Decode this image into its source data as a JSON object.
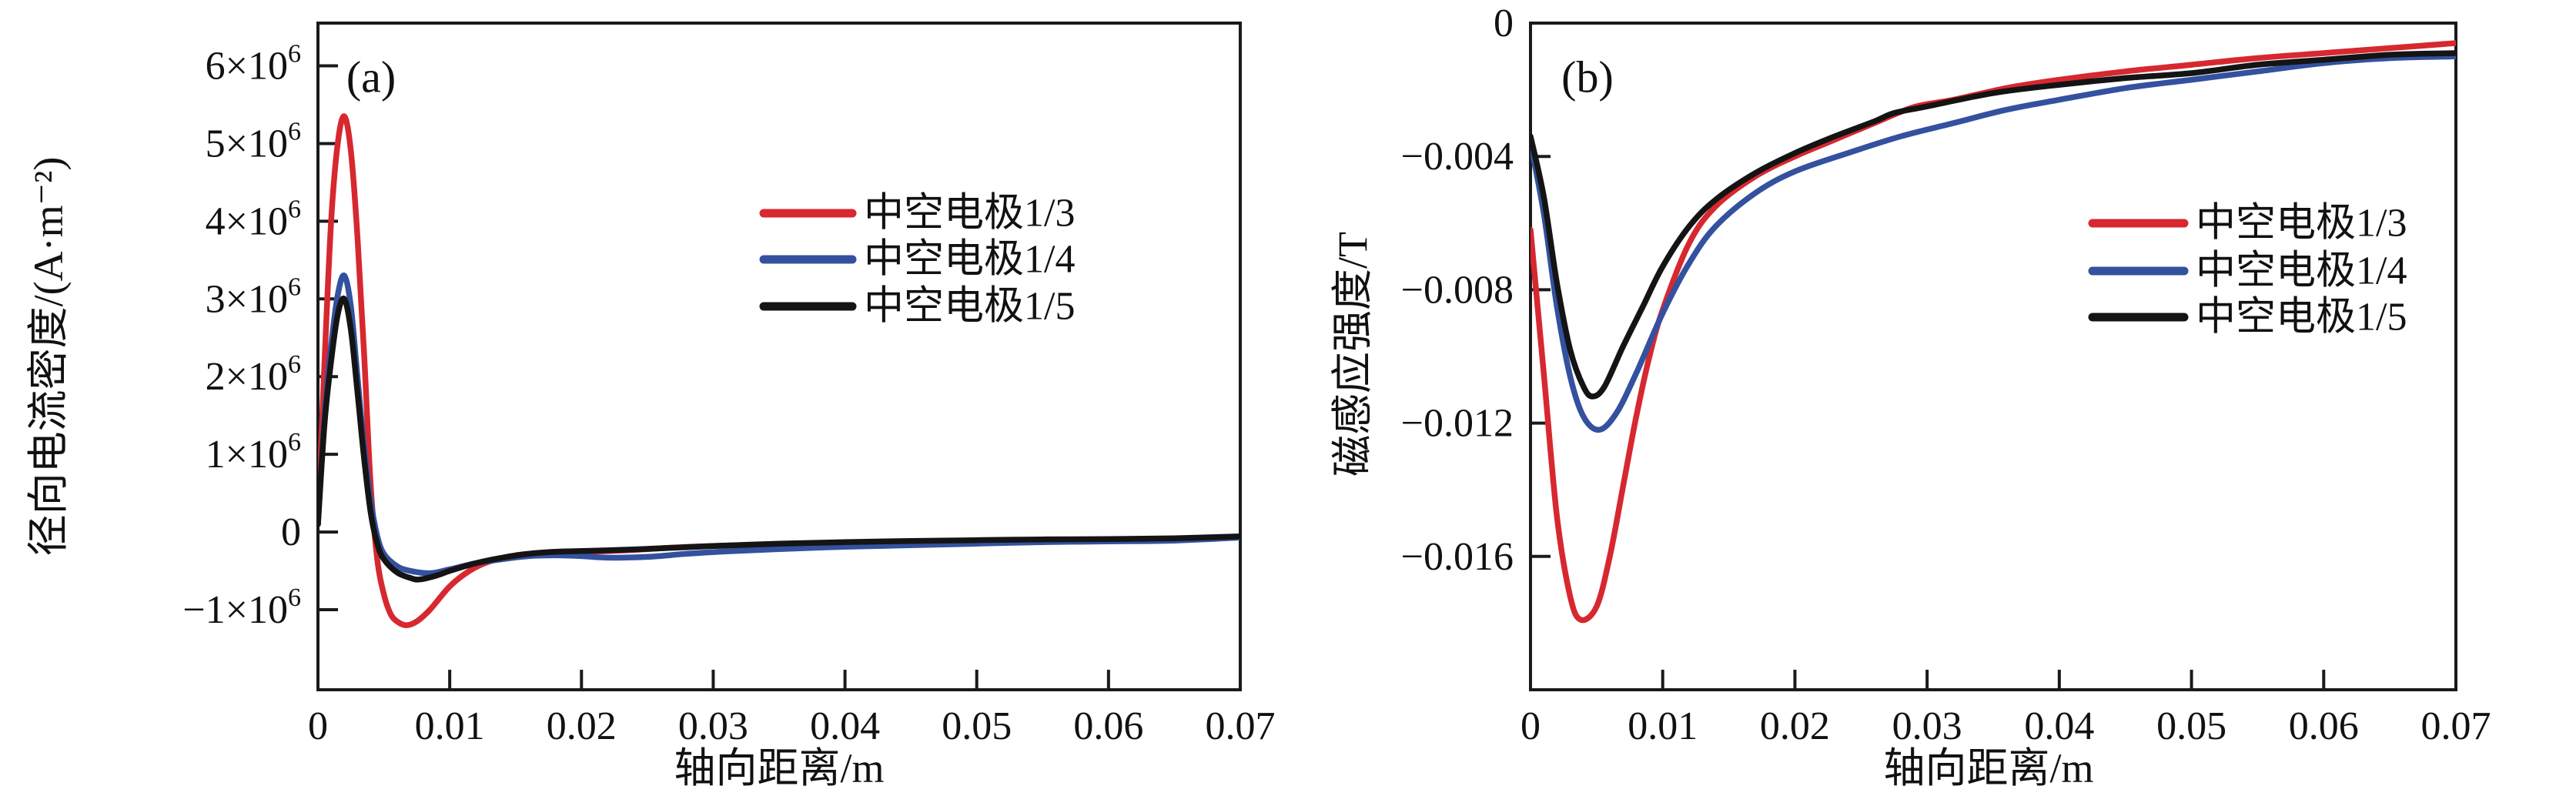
{
  "figure_background": "#ffffff",
  "chart_data": [
    {
      "type": "line",
      "panel_label": "(a)",
      "xlabel": "轴向距离/m",
      "ylabel": "径向电流密度/(A·m⁻²)",
      "xlim": [
        0,
        0.07
      ],
      "ylim": [
        -2030000,
        6550000
      ],
      "grid": false,
      "legend_position": "upper-right-inside",
      "x_ticks": [
        0,
        0.01,
        0.02,
        0.03,
        0.04,
        0.05,
        0.06,
        0.07
      ],
      "x_tick_labels": [
        "0",
        "0.01",
        "0.02",
        "0.03",
        "0.04",
        "0.05",
        "0.06",
        "0.07"
      ],
      "y_ticks": [
        {
          "value": 6000000,
          "label": "6×10^6"
        },
        {
          "value": 5000000,
          "label": "5×10^6"
        },
        {
          "value": 4000000,
          "label": "4×10^6"
        },
        {
          "value": 3000000,
          "label": "3×10^6"
        },
        {
          "value": 2000000,
          "label": "2×10^6"
        },
        {
          "value": 1000000,
          "label": "1×10^6"
        },
        {
          "value": 0,
          "label": "0"
        },
        {
          "value": -1000000,
          "label": "−1×10^6"
        }
      ],
      "series": [
        {
          "name": "中空电极1/3",
          "color": "#d7282f",
          "x": [
            0,
            0.0005,
            0.001,
            0.0015,
            0.002,
            0.0025,
            0.003,
            0.0035,
            0.004,
            0.0045,
            0.005,
            0.0055,
            0.006,
            0.0067,
            0.0075,
            0.0085,
            0.01,
            0.0115,
            0.013,
            0.015,
            0.017,
            0.019,
            0.021,
            0.024,
            0.027,
            0.03,
            0.035,
            0.04,
            0.045,
            0.05,
            0.055,
            0.06,
            0.065,
            0.07
          ],
          "y": [
            100000,
            2200000,
            4000000,
            5000000,
            5350000,
            4900000,
            3800000,
            2300000,
            600000,
            -350000,
            -800000,
            -1050000,
            -1150000,
            -1200000,
            -1150000,
            -1000000,
            -700000,
            -500000,
            -380000,
            -300000,
            -270000,
            -250000,
            -250000,
            -230000,
            -200000,
            -180000,
            -155000,
            -135000,
            -120000,
            -110000,
            -100000,
            -95000,
            -85000,
            -60000
          ]
        },
        {
          "name": "中空电极1/4",
          "color": "#33519e",
          "x": [
            0,
            0.0005,
            0.001,
            0.0015,
            0.002,
            0.0025,
            0.003,
            0.0035,
            0.004,
            0.0045,
            0.005,
            0.006,
            0.007,
            0.0085,
            0.01,
            0.012,
            0.014,
            0.016,
            0.018,
            0.02,
            0.022,
            0.025,
            0.028,
            0.031,
            0.035,
            0.04,
            0.045,
            0.05,
            0.055,
            0.06,
            0.065,
            0.07
          ],
          "y": [
            100000,
            1500000,
            2400000,
            3050000,
            3300000,
            2900000,
            2000000,
            1100000,
            400000,
            -50000,
            -280000,
            -440000,
            -500000,
            -530000,
            -480000,
            -400000,
            -350000,
            -310000,
            -300000,
            -310000,
            -330000,
            -320000,
            -280000,
            -250000,
            -220000,
            -190000,
            -170000,
            -150000,
            -130000,
            -120000,
            -110000,
            -70000
          ]
        },
        {
          "name": "中空电极1/5",
          "color": "#141414",
          "x": [
            0,
            0.0005,
            0.001,
            0.0015,
            0.002,
            0.0025,
            0.003,
            0.0035,
            0.004,
            0.0045,
            0.005,
            0.006,
            0.007,
            0.0077,
            0.009,
            0.01,
            0.012,
            0.014,
            0.016,
            0.018,
            0.02,
            0.023,
            0.026,
            0.03,
            0.035,
            0.04,
            0.045,
            0.05,
            0.055,
            0.06,
            0.065,
            0.07
          ],
          "y": [
            100000,
            1400000,
            2200000,
            2800000,
            3000000,
            2600000,
            1800000,
            950000,
            250000,
            -150000,
            -350000,
            -520000,
            -590000,
            -610000,
            -560000,
            -500000,
            -400000,
            -330000,
            -280000,
            -255000,
            -245000,
            -230000,
            -210000,
            -180000,
            -150000,
            -130000,
            -115000,
            -105000,
            -95000,
            -90000,
            -80000,
            -55000
          ]
        }
      ]
    },
    {
      "type": "line",
      "panel_label": "(b)",
      "xlabel": "轴向距离/m",
      "ylabel": "磁感应强度/T",
      "xlim": [
        0,
        0.07
      ],
      "ylim": [
        -0.02,
        0
      ],
      "grid": false,
      "legend_position": "upper-right-inside",
      "x_ticks": [
        0,
        0.01,
        0.02,
        0.03,
        0.04,
        0.05,
        0.06,
        0.07
      ],
      "x_tick_labels": [
        "0",
        "0.01",
        "0.02",
        "0.03",
        "0.04",
        "0.05",
        "0.06",
        "0.07"
      ],
      "y_ticks": [
        {
          "value": 0,
          "label": "0"
        },
        {
          "value": -0.004,
          "label": "−0.004"
        },
        {
          "value": -0.008,
          "label": "−0.008"
        },
        {
          "value": -0.012,
          "label": "−0.012"
        },
        {
          "value": -0.016,
          "label": "−0.016"
        }
      ],
      "series": [
        {
          "name": "中空电极1/3",
          "color": "#d7282f",
          "x": [
            0,
            0.001,
            0.002,
            0.003,
            0.0038,
            0.005,
            0.006,
            0.007,
            0.008,
            0.009,
            0.01,
            0.012,
            0.014,
            0.017,
            0.02,
            0.023,
            0.026,
            0.029,
            0.032,
            0.036,
            0.04,
            0.045,
            0.05,
            0.055,
            0.06,
            0.065,
            0.07
          ],
          "y": [
            -0.0062,
            -0.0105,
            -0.0148,
            -0.0172,
            -0.0179,
            -0.0175,
            -0.016,
            -0.0139,
            -0.0118,
            -0.01,
            -0.0086,
            -0.0066,
            -0.0055,
            -0.0046,
            -0.004,
            -0.0035,
            -0.003,
            -0.00252,
            -0.0023,
            -0.00195,
            -0.0017,
            -0.00145,
            -0.00125,
            -0.00105,
            -0.0009,
            -0.00075,
            -0.0006
          ]
        },
        {
          "name": "中空电极1/4",
          "color": "#33519e",
          "x": [
            0,
            0.001,
            0.002,
            0.003,
            0.004,
            0.0052,
            0.0065,
            0.008,
            0.01,
            0.012,
            0.014,
            0.017,
            0.02,
            0.024,
            0.028,
            0.032,
            0.036,
            0.04,
            0.045,
            0.05,
            0.055,
            0.06,
            0.065,
            0.07
          ],
          "y": [
            -0.0036,
            -0.0057,
            -0.0085,
            -0.0106,
            -0.0118,
            -0.0122,
            -0.0117,
            -0.0105,
            -0.0087,
            -0.0072,
            -0.0061,
            -0.0051,
            -0.00445,
            -0.0039,
            -0.0034,
            -0.003,
            -0.0026,
            -0.0023,
            -0.00195,
            -0.0017,
            -0.00145,
            -0.0012,
            -0.00105,
            -0.001
          ]
        },
        {
          "name": "中空电极1/5",
          "color": "#141414",
          "x": [
            0,
            0.001,
            0.002,
            0.003,
            0.004,
            0.0047,
            0.0056,
            0.007,
            0.0085,
            0.01,
            0.012,
            0.014,
            0.017,
            0.02,
            0.023,
            0.026,
            0.0275,
            0.03,
            0.035,
            0.04,
            0.045,
            0.05,
            0.055,
            0.06,
            0.065,
            0.07
          ],
          "y": [
            -0.0034,
            -0.0052,
            -0.0078,
            -0.0098,
            -0.0109,
            -0.0112,
            -0.0109,
            -0.0097,
            -0.0085,
            -0.0073,
            -0.0061,
            -0.0053,
            -0.0045,
            -0.0039,
            -0.0034,
            -0.00295,
            -0.0027,
            -0.0025,
            -0.0021,
            -0.00185,
            -0.00165,
            -0.0015,
            -0.00125,
            -0.0011,
            -0.00095,
            -0.0009
          ]
        }
      ]
    }
  ]
}
